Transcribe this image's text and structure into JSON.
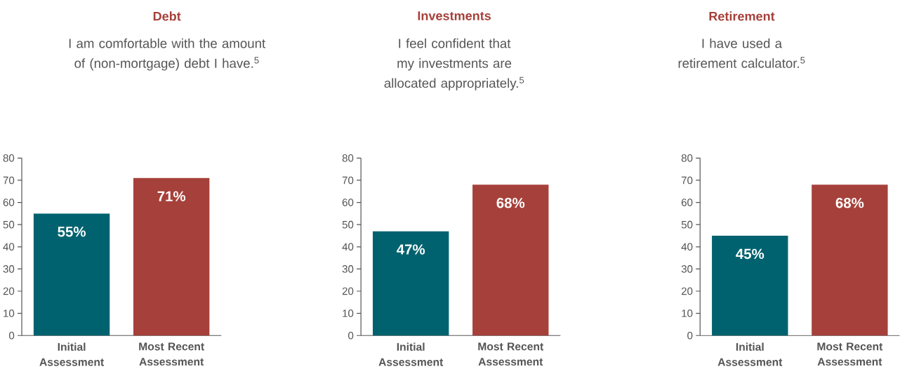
{
  "chart_data": [
    {
      "type": "bar",
      "title": "Debt",
      "subtitle": "I am comfortable with the amount of (non-mortgage) debt I have.$^{5}$",
      "categories": [
        "Initial Assessment",
        "Most Recent Assessment"
      ],
      "values": [
        55,
        71
      ],
      "colors": [
        "#00626f",
        "#a6403a"
      ],
      "value_labels": [
        "55%",
        "71%"
      ],
      "ylim": [
        0,
        80
      ],
      "yticks": [
        0,
        10,
        20,
        30,
        40,
        50,
        60,
        70,
        80
      ]
    },
    {
      "type": "bar",
      "title": "Investments",
      "subtitle": "I feel confident that my investments are allocated appropriately.$^{5}$",
      "categories": [
        "Initial Assessment",
        "Most Recent Assessment"
      ],
      "values": [
        47,
        68
      ],
      "colors": [
        "#00626f",
        "#a6403a"
      ],
      "value_labels": [
        "47%",
        "68%"
      ],
      "ylim": [
        0,
        80
      ],
      "yticks": [
        0,
        10,
        20,
        30,
        40,
        50,
        60,
        70,
        80
      ]
    },
    {
      "type": "bar",
      "title": "Retirement",
      "subtitle": "I have used a retirement calculator.$^{5}$",
      "categories": [
        "Initial Assessment",
        "Most Recent Assessment"
      ],
      "values": [
        45,
        68
      ],
      "colors": [
        "#00626f",
        "#a6403a"
      ],
      "value_labels": [
        "45%",
        "68%"
      ],
      "ylim": [
        0,
        80
      ],
      "yticks": [
        0,
        10,
        20,
        30,
        40,
        50,
        60,
        70,
        80
      ]
    }
  ]
}
